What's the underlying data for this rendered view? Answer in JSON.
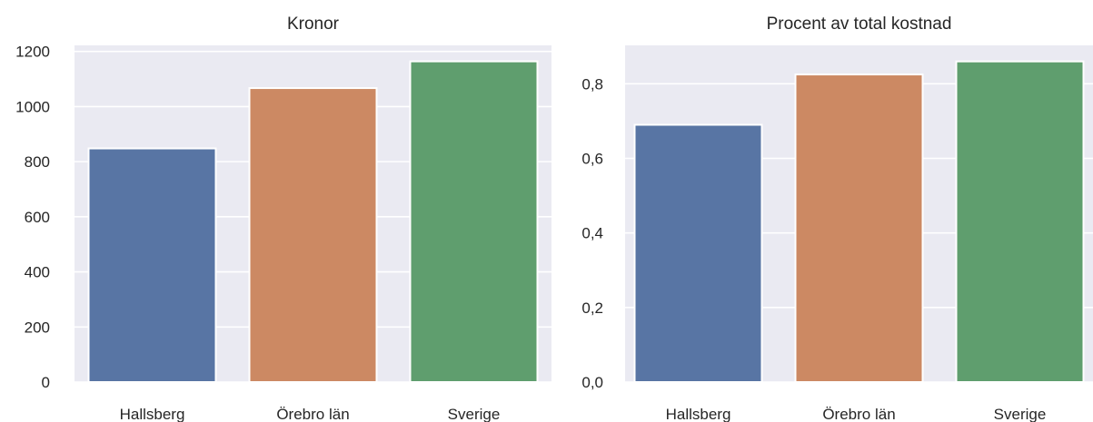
{
  "chart_data": [
    {
      "type": "bar",
      "title": "Kronor",
      "xlabel": "",
      "ylabel": "",
      "categories": [
        "Hallsberg",
        "Örebro län",
        "Sverige"
      ],
      "values": [
        848,
        1067,
        1164
      ],
      "colors": [
        "#5875a4",
        "#cc8963",
        "#5f9e6e"
      ],
      "ylim": [
        0,
        1222
      ],
      "yticks": [
        0,
        200,
        400,
        600,
        800,
        1000,
        1200
      ],
      "ytick_labels": [
        "0",
        "200",
        "400",
        "600",
        "800",
        "1000",
        "1200"
      ],
      "grid": true,
      "background": "#eaeaf2"
    },
    {
      "type": "bar",
      "title": "Procent av total kostnad",
      "xlabel": "",
      "ylabel": "",
      "categories": [
        "Hallsberg",
        "Örebro län",
        "Sverige"
      ],
      "values": [
        0.69,
        0.825,
        0.86
      ],
      "colors": [
        "#5875a4",
        "#cc8963",
        "#5f9e6e"
      ],
      "ylim": [
        0,
        0.903
      ],
      "yticks": [
        0.0,
        0.2,
        0.4,
        0.6,
        0.8
      ],
      "ytick_labels": [
        "0,0",
        "0,2",
        "0,4",
        "0,6",
        "0,8"
      ],
      "grid": true,
      "background": "#eaeaf2"
    }
  ]
}
